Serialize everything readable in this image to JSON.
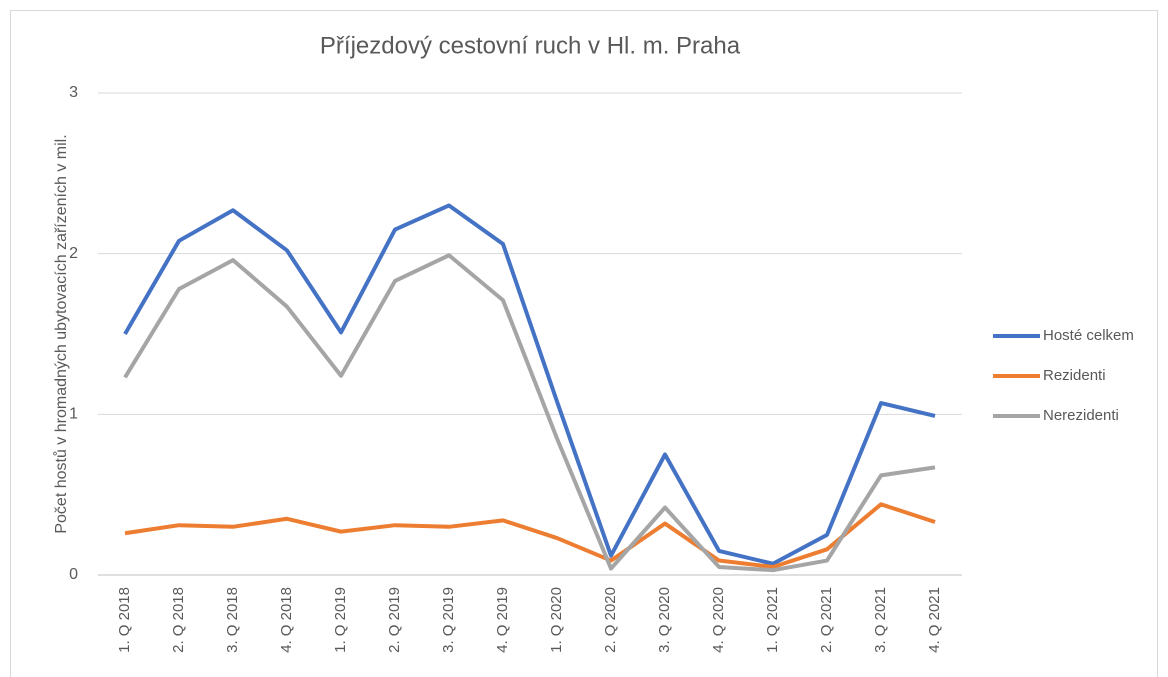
{
  "chart_data": {
    "type": "line",
    "title": "Příjezdový cestovní ruch v Hl. m. Praha",
    "y_label": "Počet hostů v hromadných ubytovacích zařízeních v mil.",
    "categories": [
      "1. Q 2018",
      "2. Q 2018",
      "3. Q 2018",
      "4. Q 2018",
      "1. Q 2019",
      "2. Q 2019",
      "3. Q 2019",
      "4. Q 2019",
      "1. Q 2020",
      "2. Q 2020",
      "3. Q 2020",
      "4. Q 2020",
      "1. Q 2021",
      "2. Q 2021",
      "3. Q 2021",
      "4. Q 2021"
    ],
    "series": [
      {
        "name": "Hosté celkem",
        "color": "#4472c4",
        "values": [
          1.5,
          2.08,
          2.27,
          2.02,
          1.51,
          2.15,
          2.3,
          2.06,
          1.08,
          0.12,
          0.75,
          0.15,
          0.07,
          0.25,
          1.07,
          0.99
        ]
      },
      {
        "name": "Rezidenti",
        "color": "#ed7d31",
        "values": [
          0.26,
          0.31,
          0.3,
          0.35,
          0.27,
          0.31,
          0.3,
          0.34,
          0.23,
          0.09,
          0.32,
          0.09,
          0.05,
          0.16,
          0.44,
          0.33
        ]
      },
      {
        "name": "Nerezidenti",
        "color": "#a5a5a5",
        "values": [
          1.23,
          1.78,
          1.96,
          1.67,
          1.24,
          1.83,
          1.99,
          1.71,
          0.85,
          0.04,
          0.42,
          0.05,
          0.03,
          0.09,
          0.62,
          0.67
        ]
      }
    ],
    "ylim": [
      0,
      3
    ],
    "yticks": [
      0,
      1,
      2,
      3
    ],
    "grid": true,
    "legend": "right"
  }
}
